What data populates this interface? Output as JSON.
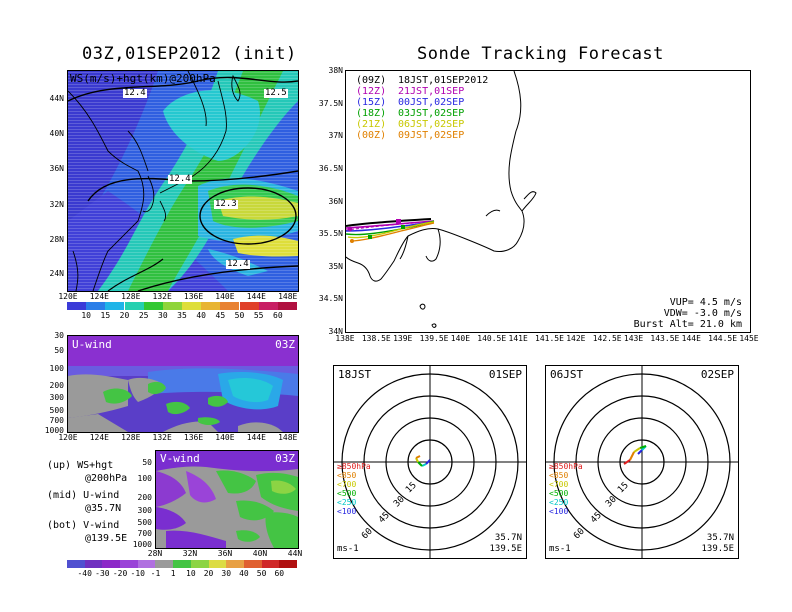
{
  "left_title": "03Z,01SEP2012 (init)",
  "right_title": "Sonde Tracking Forecast",
  "map_panel": {
    "field_label": "WS(m/s)+hgt(km)@200hPa",
    "contour_labels": [
      "12.4",
      "12.5",
      "12.4",
      "12.3",
      "12.4"
    ],
    "lat_labels": [
      "44N",
      "40N",
      "36N",
      "32N",
      "28N",
      "24N"
    ],
    "lon_labels": [
      "120E",
      "124E",
      "128E",
      "132E",
      "136E",
      "140E",
      "144E",
      "148E"
    ]
  },
  "ws_colorbar": {
    "labels": [
      "10",
      "15",
      "20",
      "25",
      "30",
      "35",
      "40",
      "45",
      "50",
      "55",
      "60"
    ],
    "colors": [
      "#3b3bd8",
      "#2a7ee8",
      "#1fb4e8",
      "#25d0b0",
      "#32c832",
      "#8fd43a",
      "#dede3a",
      "#e8b432",
      "#e88232",
      "#e04028",
      "#c81e64"
    ]
  },
  "u_panel": {
    "label": "U-wind",
    "time": "03Z",
    "p_labels": [
      "30",
      "50",
      "100",
      "200",
      "300",
      "500",
      "700",
      "1000"
    ],
    "lon_labels": [
      "120E",
      "124E",
      "128E",
      "132E",
      "136E",
      "140E",
      "144E",
      "148E"
    ]
  },
  "v_panel": {
    "label": "V-wind",
    "time": "03Z",
    "p_labels": [
      "50",
      "100",
      "200",
      "300",
      "500",
      "700",
      "1000"
    ],
    "lat_labels": [
      "28N",
      "32N",
      "36N",
      "40N",
      "44N"
    ]
  },
  "legend_notes": [
    {
      "line1": "(up) WS+hgt",
      "line2": "@200hPa"
    },
    {
      "line1": "(mid) U-wind",
      "line2": "@35.7N"
    },
    {
      "line1": "(bot) V-wind",
      "line2": "@139.5E"
    }
  ],
  "uv_colorbar": {
    "labels": [
      "-40",
      "-30",
      "-20",
      "-10",
      "-1",
      "1",
      "10",
      "20",
      "30",
      "40",
      "50",
      "60"
    ],
    "colors": [
      "#5050d0",
      "#7030c0",
      "#8c28c8",
      "#9a44d8",
      "#b070e0",
      "#9a9a9a",
      "#44c444",
      "#8cd444",
      "#dcdc44",
      "#e8a044",
      "#e06030",
      "#d02828"
    ]
  },
  "track_panel": {
    "legend": [
      {
        "utc": "(09Z)",
        "jst": "18JST,01SEP2012",
        "color": "#000000"
      },
      {
        "utc": "(12Z)",
        "jst": "21JST,01SEP",
        "color": "#b000b0"
      },
      {
        "utc": "(15Z)",
        "jst": "00JST,02SEP",
        "color": "#2828e0"
      },
      {
        "utc": "(18Z)",
        "jst": "03JST,02SEP",
        "color": "#00a000"
      },
      {
        "utc": "(21Z)",
        "jst": "06JST,02SEP",
        "color": "#c8c800"
      },
      {
        "utc": "(00Z)",
        "jst": "09JST,02SEP",
        "color": "#e08000"
      }
    ],
    "lat_labels": [
      "38N",
      "37.5N",
      "37N",
      "36.5N",
      "36N",
      "35.5N",
      "35N",
      "34.5N",
      "34N"
    ],
    "lon_labels": [
      "138E",
      "138.5E",
      "139E",
      "139.5E",
      "140E",
      "140.5E",
      "141E",
      "141.5E",
      "142E",
      "142.5E",
      "143E",
      "143.5E",
      "144E",
      "144.5E",
      "145E"
    ],
    "vup": "VUP= 4.5 m/s",
    "vdw": "VDW= -3.0 m/s",
    "burst": "Burst Alt= 21.0 km"
  },
  "hodographs": [
    {
      "time_label": "18JST",
      "date_label": "01SEP",
      "unit": "ms-1",
      "lat": "35.7N",
      "lon": "139.5E",
      "ring_labels": [
        "15",
        "30",
        "45",
        "60"
      ],
      "levels": [
        {
          "label": "≥850hPa",
          "color": "#e02020"
        },
        {
          "label": "<850",
          "color": "#e08000"
        },
        {
          "label": "<700",
          "color": "#c8c800"
        },
        {
          "label": "<500",
          "color": "#00b000"
        },
        {
          "label": "<250",
          "color": "#00c8c8"
        },
        {
          "label": "<100",
          "color": "#2828e0"
        }
      ]
    },
    {
      "time_label": "06JST",
      "date_label": "02SEP",
      "unit": "ms-1",
      "lat": "35.7N",
      "lon": "139.5E",
      "ring_labels": [
        "15",
        "30",
        "45",
        "60"
      ],
      "levels": [
        {
          "label": "≥850hPa",
          "color": "#e02020"
        },
        {
          "label": "<850",
          "color": "#e08000"
        },
        {
          "label": "<700",
          "color": "#c8c800"
        },
        {
          "label": "<500",
          "color": "#00b000"
        },
        {
          "label": "<250",
          "color": "#00c8c8"
        },
        {
          "label": "<100",
          "color": "#2828e0"
        }
      ]
    }
  ]
}
